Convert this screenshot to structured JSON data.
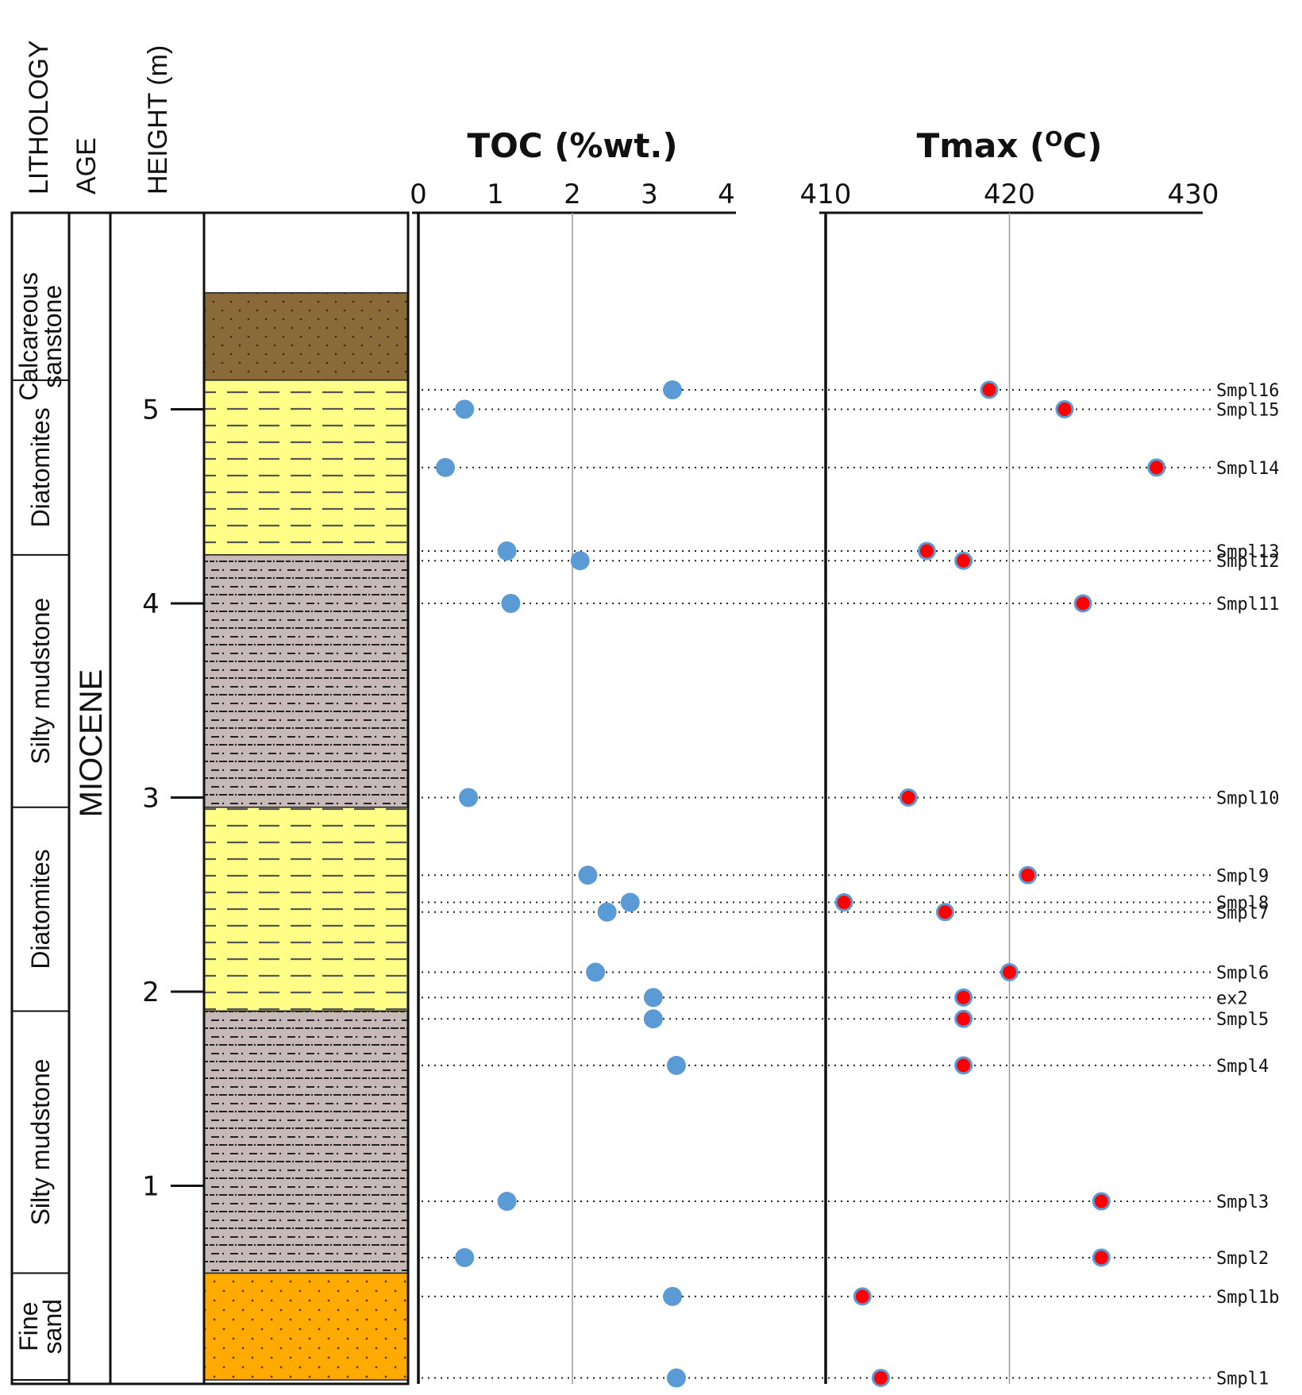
{
  "headers": {
    "lithology": "LITHOLOGY",
    "age": "AGE",
    "height": "HEIGHT (m)"
  },
  "age_label": "MIOCENE",
  "colors": {
    "toc_point": "#5b9bd5",
    "tmax_point": "#ff0000",
    "tmax_point_edge": "#5b9bd5",
    "calcareous_sandstone": "#8b6a3a",
    "diatomites": "#ffff88",
    "silty_mudstone": "#c8b9b9",
    "fine_sand": "#ffaa00"
  },
  "units": [
    {
      "label_lines": [
        "Calcareous",
        "sanstone"
      ],
      "base_m": 5.15,
      "top_m": 5.6,
      "pattern": "calcareous_sandstone"
    },
    {
      "label_lines": [
        "Diatomites"
      ],
      "base_m": 4.25,
      "top_m": 5.15,
      "pattern": "diatomites"
    },
    {
      "label_lines": [
        "Silty mudstone"
      ],
      "base_m": 2.95,
      "top_m": 4.25,
      "pattern": "silty_mudstone"
    },
    {
      "label_lines": [
        "Diatomites"
      ],
      "base_m": 1.9,
      "top_m": 2.95,
      "pattern": "diatomites"
    },
    {
      "label_lines": [
        "Silty mudstone"
      ],
      "base_m": 0.55,
      "top_m": 1.9,
      "pattern": "silty_mudstone"
    },
    {
      "label_lines": [
        "Fine",
        "sand"
      ],
      "base_m": 0.0,
      "top_m": 0.55,
      "pattern": "fine_sand"
    }
  ],
  "height_axis": {
    "min": 0,
    "max": 6,
    "ticks": [
      "1",
      "2",
      "3",
      "4",
      "5"
    ]
  },
  "chart_data": {
    "type": "scatter",
    "panels": [
      {
        "key": "toc",
        "title": "TOC (%wt.)",
        "xlim": [
          0,
          4
        ],
        "ticks": [
          "0",
          "1",
          "2",
          "3",
          "4"
        ],
        "grid_at": [
          2
        ]
      },
      {
        "key": "tmax",
        "title": "Tmax (",
        "title_sup": "O",
        "title_end": "C)",
        "xlim": [
          410,
          430
        ],
        "ticks": [
          "410",
          "420",
          "430"
        ],
        "grid_at": [
          420
        ]
      }
    ],
    "ylabel": "HEIGHT (m)",
    "ylim": [
      0,
      6
    ],
    "samples": [
      {
        "name": "Smpl16",
        "height": 5.1,
        "toc": 3.3,
        "tmax": 418.9
      },
      {
        "name": "Smpl15",
        "height": 5.0,
        "toc": 0.6,
        "tmax": 423.0
      },
      {
        "name": "Smpl14",
        "height": 4.7,
        "toc": 0.35,
        "tmax": 428.0
      },
      {
        "name": "Smpl13",
        "height": 4.27,
        "toc": 1.15,
        "tmax": 415.5
      },
      {
        "name": "Smpl12",
        "height": 4.22,
        "toc": 2.1,
        "tmax": 417.5
      },
      {
        "name": "Smpl11",
        "height": 4.0,
        "toc": 1.2,
        "tmax": 424.0
      },
      {
        "name": "Smpl10",
        "height": 3.0,
        "toc": 0.65,
        "tmax": 414.5
      },
      {
        "name": "Smpl9",
        "height": 2.6,
        "toc": 2.2,
        "tmax": 421.0
      },
      {
        "name": "Smpl8",
        "height": 2.46,
        "toc": 2.75,
        "tmax": 411.0
      },
      {
        "name": "Smpl7",
        "height": 2.41,
        "toc": 2.45,
        "tmax": 416.5
      },
      {
        "name": "Smpl6",
        "height": 2.1,
        "toc": 2.3,
        "tmax": 420.0
      },
      {
        "name": "ex2",
        "height": 1.97,
        "toc": 3.05,
        "tmax": 417.5
      },
      {
        "name": "Smpl5",
        "height": 1.86,
        "toc": 3.05,
        "tmax": 417.5
      },
      {
        "name": "Smpl4",
        "height": 1.62,
        "toc": 3.35,
        "tmax": 417.5
      },
      {
        "name": "Smpl3",
        "height": 0.92,
        "toc": 1.15,
        "tmax": 425.0
      },
      {
        "name": "Smpl2",
        "height": 0.63,
        "toc": 0.6,
        "tmax": 425.0
      },
      {
        "name": "Smpl1b",
        "height": 0.43,
        "toc": 3.3,
        "tmax": 412.0
      },
      {
        "name": "Smpl1",
        "height": 0.01,
        "toc": 3.35,
        "tmax": 413.0
      }
    ]
  }
}
